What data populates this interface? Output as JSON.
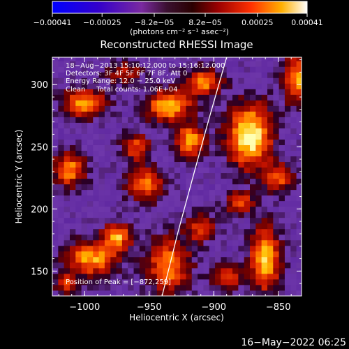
{
  "chart_data": {
    "type": "heatmap",
    "title": "Reconstructed RHESSI Image",
    "xlabel": "Heliocentric X (arcsec)",
    "ylabel": "Heliocentric Y (arcsec)",
    "xlim": [
      -1025,
      -832
    ],
    "ylim": [
      130,
      322
    ],
    "x_ticks": [
      -1000,
      -950,
      -900,
      -850
    ],
    "y_ticks": [
      150,
      200,
      250,
      300
    ],
    "x_tick_labels": [
      "−1000",
      "−950",
      "−900",
      "−850"
    ],
    "y_tick_labels": [
      "150",
      "200",
      "250",
      "300"
    ],
    "colorbar": {
      "range": [
        -0.00041,
        0.00041
      ],
      "ticks": [
        -0.00041,
        -0.00025,
        -8.2e-05,
        8.2e-05,
        0.00025,
        0.00041
      ],
      "tick_labels": [
        "−0.00041",
        "−0.00025",
        "−8.2e−05",
        "8.2e−05",
        "0.00025",
        "0.00041"
      ],
      "unit_label": "(photons cm⁻² s⁻¹ asec⁻²)"
    },
    "annotations": [
      "18−Aug−2013 15:10:12.000 to 15:16:12.000",
      "Detectors: 3F 4F 5F 6F 7F 8F, Att 0",
      "Energy Range: 12.0 − 25.0 keV",
      "Clean     Total counts: 1.06E+04",
      "Position of Peak = [−872,259]"
    ],
    "peak": {
      "x": -872,
      "y": 259
    },
    "limb_curve": [
      [
        -940,
        130
      ],
      [
        -928,
        180
      ],
      [
        -915,
        230
      ],
      [
        -903,
        275
      ],
      [
        -890,
        322
      ]
    ],
    "blobs": [
      {
        "x": -872,
        "y": 259,
        "sx": 12,
        "sy": 18,
        "a": 1.0
      },
      {
        "x": -935,
        "y": 283,
        "sx": 12,
        "sy": 9,
        "a": 0.85
      },
      {
        "x": -918,
        "y": 255,
        "sx": 9,
        "sy": 9,
        "a": 0.75
      },
      {
        "x": -908,
        "y": 302,
        "sx": 10,
        "sy": 8,
        "a": 0.7
      },
      {
        "x": -1000,
        "y": 285,
        "sx": 12,
        "sy": 8,
        "a": 0.8
      },
      {
        "x": -1012,
        "y": 232,
        "sx": 9,
        "sy": 10,
        "a": 0.7
      },
      {
        "x": -995,
        "y": 160,
        "sx": 14,
        "sy": 10,
        "a": 0.75
      },
      {
        "x": -975,
        "y": 178,
        "sx": 8,
        "sy": 8,
        "a": 0.75
      },
      {
        "x": -953,
        "y": 220,
        "sx": 10,
        "sy": 10,
        "a": 0.65
      },
      {
        "x": -935,
        "y": 155,
        "sx": 12,
        "sy": 16,
        "a": 0.7
      },
      {
        "x": -860,
        "y": 160,
        "sx": 8,
        "sy": 18,
        "a": 0.9
      },
      {
        "x": -835,
        "y": 305,
        "sx": 8,
        "sy": 14,
        "a": 0.75
      },
      {
        "x": -880,
        "y": 205,
        "sx": 8,
        "sy": 6,
        "a": 0.6
      },
      {
        "x": -910,
        "y": 185,
        "sx": 8,
        "sy": 8,
        "a": 0.55
      },
      {
        "x": -850,
        "y": 225,
        "sx": 8,
        "sy": 8,
        "a": 0.6
      },
      {
        "x": -890,
        "y": 145,
        "sx": 8,
        "sy": 8,
        "a": 0.55
      },
      {
        "x": -970,
        "y": 310,
        "sx": 10,
        "sy": 6,
        "a": 0.45
      },
      {
        "x": -960,
        "y": 250,
        "sx": 8,
        "sy": 8,
        "a": 0.55
      },
      {
        "x": -1015,
        "y": 140,
        "sx": 6,
        "sy": 6,
        "a": 0.5
      }
    ]
  },
  "footer": {
    "date": "16−May−2022 06:25"
  },
  "colors": {
    "background": "#000000",
    "text": "#ffffff",
    "limb": "#ffffff"
  }
}
